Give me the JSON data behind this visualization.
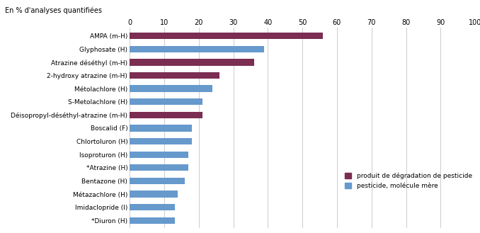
{
  "categories": [
    "AMPA (m-H)",
    "Glyphosate (H)",
    "Atrazine déséthyl (m-H)",
    "2-hydroxy atrazine (m-H)",
    "Métolachlore (H)",
    "S-Metolachlore (H)",
    "Déisopropyl-déséthyl-atrazine (m-H)",
    "Boscalid (F)",
    "Chlortoluron (H)",
    "Isoproturon (H)",
    "*Atrazine (H)",
    "Bentazone (H)",
    "Métazachlore (H)",
    "Imidaclopride (I)",
    "*Diuron (H)"
  ],
  "values": [
    56,
    39,
    36,
    26,
    24,
    21,
    21,
    18,
    18,
    17,
    17,
    16,
    14,
    13,
    13
  ],
  "colors": [
    "#7b2d52",
    "#6699cc",
    "#7b2d52",
    "#7b2d52",
    "#6699cc",
    "#6699cc",
    "#7b2d52",
    "#6699cc",
    "#6699cc",
    "#6699cc",
    "#6699cc",
    "#6699cc",
    "#6699cc",
    "#6699cc",
    "#6699cc"
  ],
  "xlabel": "En % d'analyses quantifiées",
  "xlim": [
    0,
    100
  ],
  "xticks": [
    0,
    10,
    20,
    30,
    40,
    50,
    60,
    70,
    80,
    90,
    100
  ],
  "legend_labels": [
    "produit de dégradation de pesticide",
    "pesticide, molécule mère"
  ],
  "legend_colors": [
    "#7b2d52",
    "#6699cc"
  ],
  "background_color": "#ffffff",
  "bar_height": 0.5,
  "grid_color": "#cccccc"
}
